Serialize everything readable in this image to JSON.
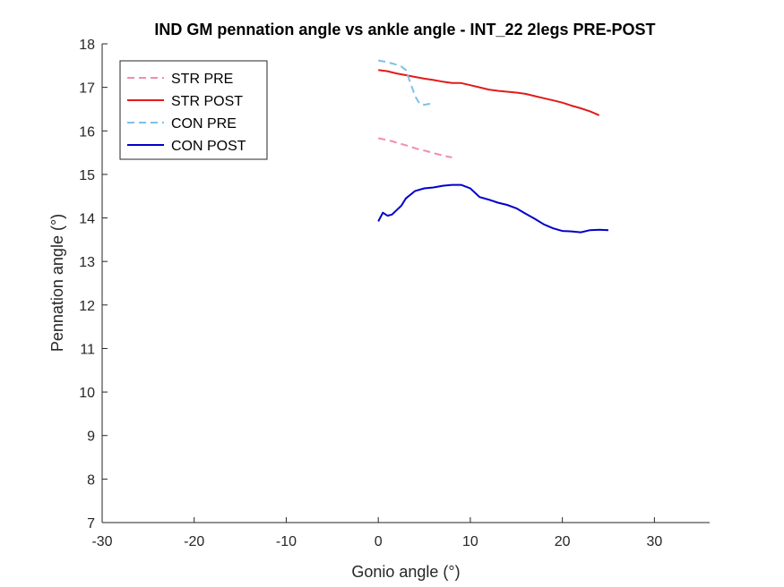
{
  "chart_data": {
    "type": "line",
    "title": "IND GM pennation angle vs ankle angle - INT_22 2legs PRE-POST",
    "xlabel": "Gonio angle (°)",
    "ylabel": "Pennation angle (°)",
    "xlim": [
      -30,
      36
    ],
    "ylim": [
      7,
      18
    ],
    "xticks": [
      -30,
      -20,
      -10,
      0,
      10,
      20,
      30
    ],
    "yticks": [
      7,
      8,
      9,
      10,
      11,
      12,
      13,
      14,
      15,
      16,
      17,
      18
    ],
    "grid": false,
    "legend_position": "top-left",
    "series": [
      {
        "name": "STR PRE",
        "color": "#f08cb4",
        "dashed": true,
        "x": [
          0,
          0.5,
          1,
          1.5,
          2,
          2.5,
          3,
          3.5,
          4,
          4.5,
          5,
          5.5,
          6,
          6.5,
          7,
          7.5,
          8
        ],
        "y": [
          15.83,
          15.81,
          15.79,
          15.76,
          15.73,
          15.7,
          15.67,
          15.64,
          15.6,
          15.57,
          15.55,
          15.52,
          15.49,
          15.46,
          15.44,
          15.41,
          15.39
        ]
      },
      {
        "name": "STR POST",
        "color": "#e01b1b",
        "dashed": false,
        "x": [
          0,
          1,
          2,
          3,
          4,
          5,
          6,
          7,
          8,
          9,
          10,
          11,
          12,
          13,
          14,
          15,
          16,
          17,
          18,
          19,
          20,
          21,
          22,
          23,
          24
        ],
        "y": [
          17.4,
          17.37,
          17.32,
          17.28,
          17.24,
          17.2,
          17.17,
          17.13,
          17.1,
          17.1,
          17.05,
          17.0,
          16.95,
          16.92,
          16.9,
          16.88,
          16.85,
          16.8,
          16.75,
          16.7,
          16.65,
          16.58,
          16.52,
          16.45,
          16.36
        ]
      },
      {
        "name": "CON PRE",
        "color": "#7cc0ea",
        "dashed": true,
        "x": [
          0,
          0.5,
          1,
          1.5,
          2,
          2.5,
          3,
          3.5,
          4,
          4.5,
          5,
          5.5,
          6
        ],
        "y": [
          17.62,
          17.6,
          17.58,
          17.55,
          17.52,
          17.48,
          17.4,
          17.1,
          16.8,
          16.62,
          16.6,
          16.62,
          16.6
        ]
      },
      {
        "name": "CON POST",
        "color": "#0000cc",
        "dashed": false,
        "x": [
          0,
          0.5,
          1,
          1.5,
          2,
          2.5,
          3,
          4,
          5,
          6,
          7,
          8,
          9,
          10,
          11,
          12,
          13,
          14,
          15,
          16,
          17,
          18,
          19,
          20,
          21,
          22,
          23,
          24,
          25
        ],
        "y": [
          13.92,
          14.12,
          14.05,
          14.08,
          14.18,
          14.28,
          14.45,
          14.62,
          14.68,
          14.7,
          14.74,
          14.76,
          14.76,
          14.68,
          14.48,
          14.42,
          14.35,
          14.3,
          14.22,
          14.1,
          13.98,
          13.85,
          13.76,
          13.7,
          13.69,
          13.67,
          13.72,
          13.73,
          13.72
        ]
      }
    ]
  }
}
